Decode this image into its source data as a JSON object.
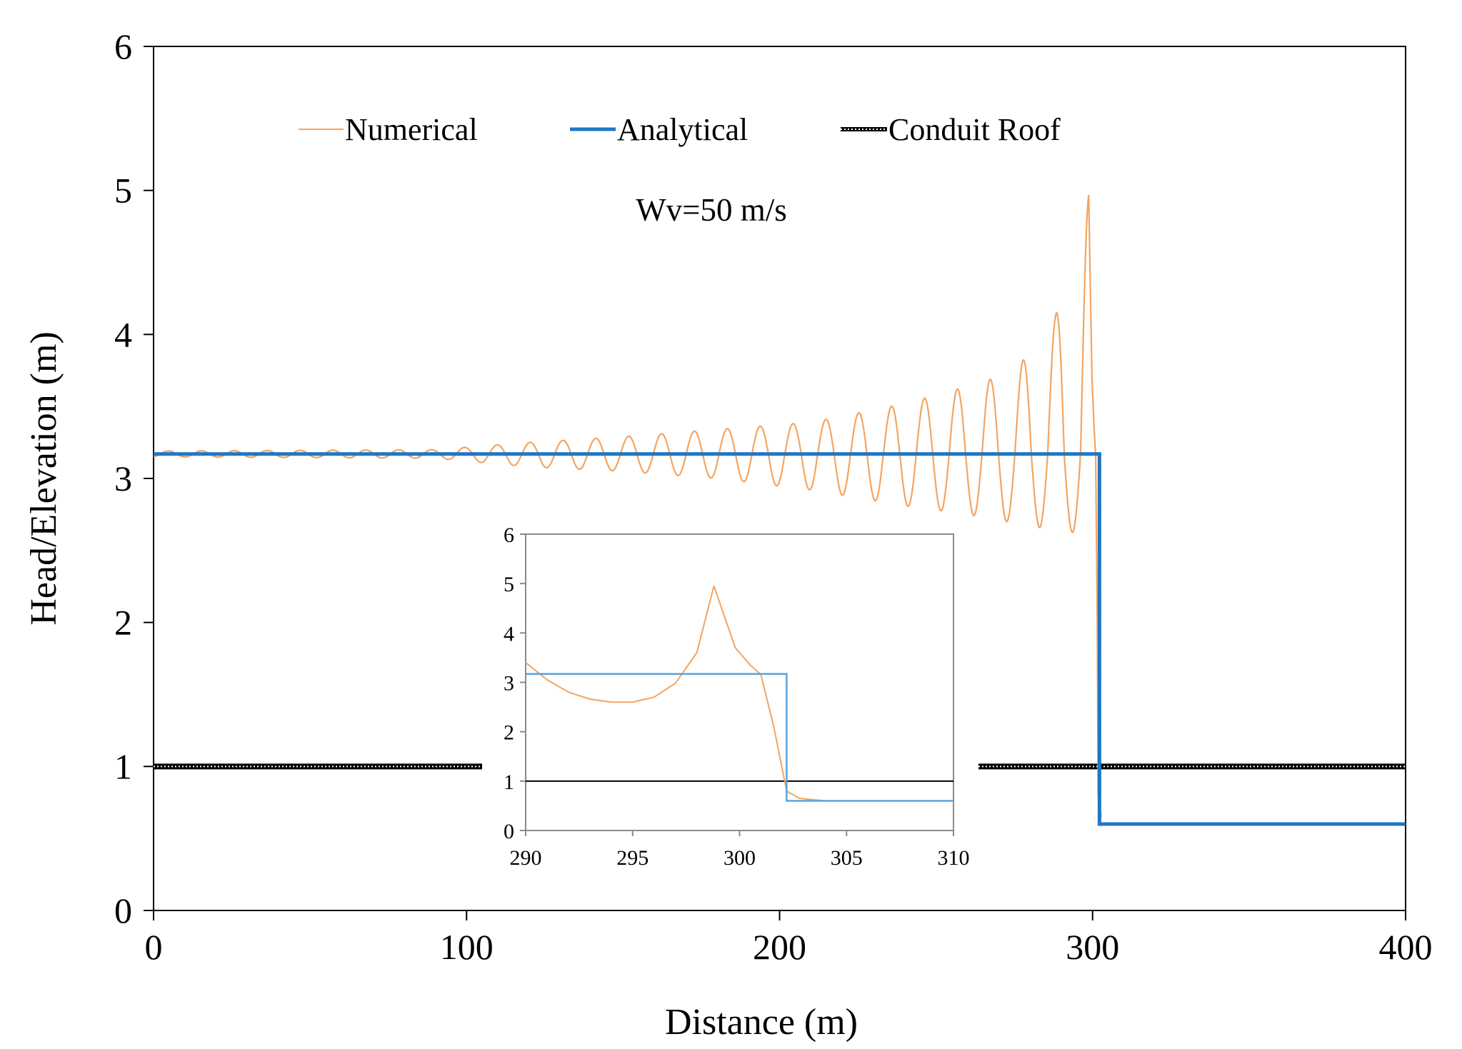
{
  "chart_data": [
    {
      "type": "line",
      "title": "",
      "annotation": "Wv=50 m/s",
      "xlabel": "Distance (m)",
      "ylabel": "Head/Elevation (m)",
      "xlim": [
        0,
        400
      ],
      "ylim": [
        0,
        6
      ],
      "x_ticks": [
        "0",
        "100",
        "200",
        "300",
        "400"
      ],
      "y_ticks": [
        "0",
        "1",
        "2",
        "3",
        "4",
        "5",
        "6"
      ],
      "legend": {
        "position": "top",
        "entries": [
          "Numerical",
          "Analytical",
          "Conduit Roof"
        ]
      },
      "series": [
        {
          "name": "Numerical",
          "color": "#F4A460",
          "style": "oscillating",
          "base_level": 3.17,
          "period": 10.5,
          "jump_x": 301.8,
          "after_level": 0.6,
          "envelope": [
            {
              "x": 0,
              "up": 0.02,
              "low": 0.02
            },
            {
              "x": 90,
              "up": 0.03,
              "low": 0.03
            },
            {
              "x": 120,
              "up": 0.08,
              "low": 0.09
            },
            {
              "x": 150,
              "up": 0.12,
              "low": 0.12
            },
            {
              "x": 180,
              "up": 0.17,
              "low": 0.17
            },
            {
              "x": 210,
              "up": 0.22,
              "low": 0.25
            },
            {
              "x": 240,
              "up": 0.35,
              "low": 0.36
            },
            {
              "x": 260,
              "up": 0.47,
              "low": 0.42
            },
            {
              "x": 275,
              "up": 0.57,
              "low": 0.48
            },
            {
              "x": 288,
              "up": 0.95,
              "low": 0.53
            },
            {
              "x": 298.8,
              "up": 1.8,
              "low": 0.56
            }
          ]
        },
        {
          "name": "Analytical",
          "color": "#1F77C4",
          "points": [
            [
              0,
              3.17
            ],
            [
              302.2,
              3.17
            ],
            [
              302.2,
              0.6
            ],
            [
              400,
              0.6
            ]
          ]
        },
        {
          "name": "Conduit Roof",
          "color": "#000000",
          "style": "dotted",
          "points": [
            [
              0,
              1.0
            ],
            [
              400,
              1.0
            ]
          ]
        }
      ]
    },
    {
      "type": "line",
      "title": "inset",
      "xlim": [
        290,
        310
      ],
      "ylim": [
        0,
        6
      ],
      "x_ticks": [
        "290",
        "295",
        "300",
        "305",
        "310"
      ],
      "y_ticks": [
        "0",
        "1",
        "2",
        "3",
        "4",
        "5",
        "6"
      ],
      "series": [
        {
          "name": "Numerical",
          "color": "#F4A460",
          "points": [
            [
              290,
              3.4
            ],
            [
              291,
              3.05
            ],
            [
              292,
              2.8
            ],
            [
              293,
              2.66
            ],
            [
              294,
              2.6
            ],
            [
              295,
              2.6
            ],
            [
              296,
              2.7
            ],
            [
              297,
              2.98
            ],
            [
              298,
              3.6
            ],
            [
              298.8,
              4.95
            ],
            [
              299.8,
              3.7
            ],
            [
              300.5,
              3.35
            ],
            [
              301,
              3.15
            ],
            [
              301.6,
              2.1
            ],
            [
              302.2,
              0.8
            ],
            [
              302.8,
              0.65
            ],
            [
              304,
              0.6
            ]
          ]
        },
        {
          "name": "Analytical",
          "color": "#5BA3DC",
          "points": [
            [
              290,
              3.17
            ],
            [
              302.2,
              3.17
            ],
            [
              302.2,
              0.6
            ],
            [
              310,
              0.6
            ]
          ]
        },
        {
          "name": "Conduit Roof",
          "color": "#000000",
          "points": [
            [
              290,
              1.0
            ],
            [
              310,
              1.0
            ]
          ]
        }
      ]
    }
  ]
}
